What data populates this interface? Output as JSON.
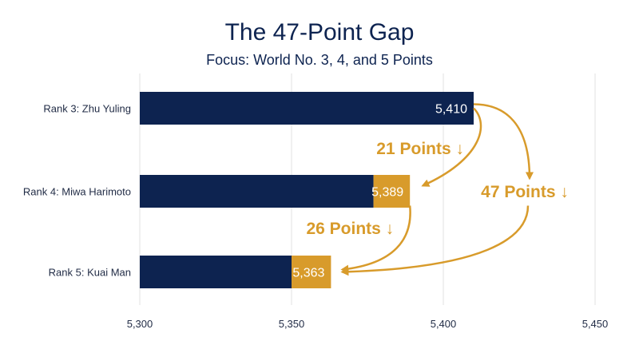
{
  "chart_data": {
    "type": "bar",
    "orientation": "horizontal",
    "title": "The 47-Point Gap",
    "subtitle": "Focus: World No. 3, 4, and 5 Points",
    "categories": [
      "Rank 3: Zhu Yuling",
      "Rank 4: Miwa Harimoto",
      "Rank 5: Kuai Man"
    ],
    "values": [
      5410,
      5389,
      5363
    ],
    "value_labels": [
      "5,410",
      "5,389",
      "5,363"
    ],
    "highlight_from": [
      null,
      5377,
      5350
    ],
    "xlim": [
      5300,
      5450
    ],
    "xticks": [
      5300,
      5350,
      5400,
      5450
    ],
    "xtick_labels": [
      "5,300",
      "5,350",
      "5,400",
      "5,450"
    ],
    "grid": true,
    "annotations": [
      {
        "text": "21 Points ↓",
        "from": "Rank 3: Zhu Yuling",
        "to": "Rank 4: Miwa Harimoto"
      },
      {
        "text": "26 Points ↓",
        "from": "Rank 4: Miwa Harimoto",
        "to": "Rank 5: Kuai Man"
      },
      {
        "text": "47 Points ↓",
        "from": "Rank 3: Zhu Yuling",
        "to": "Rank 5: Kuai Man"
      }
    ],
    "colors": {
      "bar": "#0d2350",
      "highlight": "#d89b2b",
      "annotation": "#d89b2b",
      "title": "#0d2350"
    }
  }
}
